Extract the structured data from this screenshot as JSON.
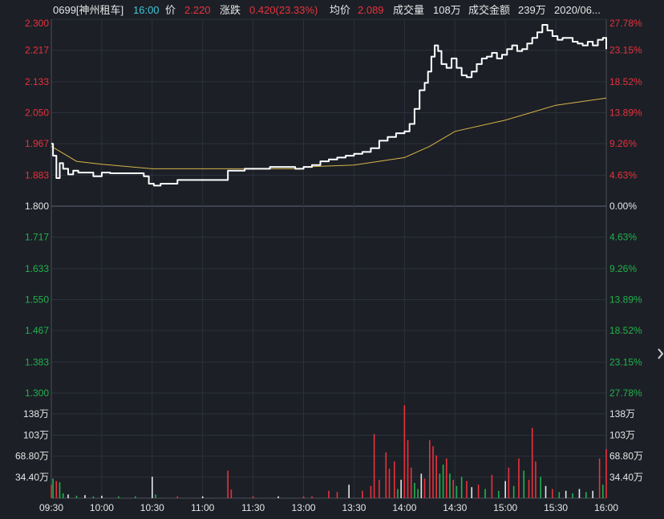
{
  "header": {
    "code_name": "0699[神州租车]",
    "time": "16:00",
    "price_label": "价",
    "price": "2.220",
    "change_label": "涨跌",
    "change": "0.420(23.33%)",
    "avg_label": "均价",
    "avg": "2.089",
    "volume_label": "成交量",
    "volume": "108万",
    "amount_label": "成交金额",
    "amount": "239万",
    "date": "2020/06..."
  },
  "colors": {
    "background": "#1c1f26",
    "grid": "#2c313c",
    "up": "#e8323c",
    "down": "#21b24b",
    "neutral": "#e6e6e6",
    "price_line": "#ffffff",
    "avg_line": "#d8b44a"
  },
  "chart_data": {
    "type": "line",
    "title": "",
    "xlabel": "",
    "ylabel": "",
    "x_ticks": [
      "09:30",
      "10:00",
      "10:30",
      "11:00",
      "11:30",
      "13:00",
      "13:30",
      "14:00",
      "14:30",
      "15:00",
      "15:30",
      "16:00"
    ],
    "price_ticks": [
      {
        "label": "2.300",
        "value": 2.3,
        "pct": "27.78%",
        "dir": "up"
      },
      {
        "label": "2.217",
        "value": 2.217,
        "pct": "23.15%",
        "dir": "up"
      },
      {
        "label": "2.133",
        "value": 2.133,
        "pct": "18.52%",
        "dir": "up"
      },
      {
        "label": "2.050",
        "value": 2.05,
        "pct": "13.89%",
        "dir": "up"
      },
      {
        "label": "1.967",
        "value": 1.967,
        "pct": "9.26%",
        "dir": "up"
      },
      {
        "label": "1.883",
        "value": 1.883,
        "pct": "4.63%",
        "dir": "up"
      },
      {
        "label": "1.800",
        "value": 1.8,
        "pct": "0.00%",
        "dir": "flat"
      },
      {
        "label": "1.717",
        "value": 1.717,
        "pct": "4.63%",
        "dir": "down"
      },
      {
        "label": "1.633",
        "value": 1.633,
        "pct": "9.26%",
        "dir": "down"
      },
      {
        "label": "1.550",
        "value": 1.55,
        "pct": "13.89%",
        "dir": "down"
      },
      {
        "label": "1.467",
        "value": 1.467,
        "pct": "18.52%",
        "dir": "down"
      },
      {
        "label": "1.383",
        "value": 1.383,
        "pct": "23.15%",
        "dir": "down"
      },
      {
        "label": "1.300",
        "value": 1.3,
        "pct": "27.78%",
        "dir": "down"
      }
    ],
    "ylim": [
      1.3,
      2.3
    ],
    "prev_close": 1.8,
    "volume_ticks": [
      {
        "label": "138万",
        "value": 138
      },
      {
        "label": "103万",
        "value": 103
      },
      {
        "label": "68.80万",
        "value": 68.8
      },
      {
        "label": "34.40万",
        "value": 34.4
      }
    ],
    "volume_unit": "万",
    "volume_ylim": [
      0,
      172
    ],
    "series": [
      {
        "kind": "price",
        "x": [
          "09:30",
          "09:31",
          "09:33",
          "09:35",
          "09:37",
          "09:40",
          "09:43",
          "09:46",
          "09:50",
          "09:55",
          "10:00",
          "10:05",
          "10:15",
          "10:25",
          "10:28",
          "10:31",
          "10:35",
          "10:40",
          "10:45",
          "10:50",
          "10:55",
          "11:00",
          "11:05",
          "11:10",
          "11:15",
          "11:20",
          "11:25",
          "11:30",
          "11:35",
          "11:40",
          "11:45",
          "11:50",
          "11:55",
          "12:00",
          "13:00",
          "13:05",
          "13:10",
          "13:15",
          "13:20",
          "13:25",
          "13:30",
          "13:35",
          "13:40",
          "13:45",
          "13:50",
          "13:55",
          "14:00",
          "14:03",
          "14:06",
          "14:09",
          "14:12",
          "14:14",
          "14:16",
          "14:18",
          "14:20",
          "14:22",
          "14:25",
          "14:28",
          "14:31",
          "14:34",
          "14:37",
          "14:40",
          "14:43",
          "14:46",
          "14:49",
          "14:52",
          "14:55",
          "14:58",
          "15:01",
          "15:04",
          "15:07",
          "15:10",
          "15:13",
          "15:16",
          "15:19",
          "15:22",
          "15:25",
          "15:28",
          "15:31",
          "15:34",
          "15:37",
          "15:40",
          "15:43",
          "15:46",
          "15:49",
          "15:52",
          "15:55",
          "15:58",
          "16:00"
        ],
        "values": [
          1.967,
          1.935,
          1.875,
          1.915,
          1.9,
          1.885,
          1.895,
          1.89,
          1.89,
          1.88,
          1.89,
          1.888,
          1.888,
          1.88,
          1.86,
          1.855,
          1.86,
          1.86,
          1.87,
          1.87,
          1.87,
          1.87,
          1.87,
          1.87,
          1.895,
          1.895,
          1.9,
          1.9,
          1.9,
          1.905,
          1.905,
          1.905,
          1.9,
          1.905,
          1.905,
          1.91,
          1.92,
          1.925,
          1.93,
          1.935,
          1.94,
          1.945,
          1.955,
          1.975,
          1.985,
          1.995,
          2.0,
          2.02,
          2.06,
          2.11,
          2.13,
          2.16,
          2.2,
          2.23,
          2.215,
          2.18,
          2.17,
          2.195,
          2.17,
          2.15,
          2.145,
          2.16,
          2.18,
          2.195,
          2.2,
          2.21,
          2.195,
          2.205,
          2.22,
          2.23,
          2.215,
          2.22,
          2.235,
          2.25,
          2.265,
          2.285,
          2.27,
          2.255,
          2.245,
          2.25,
          2.25,
          2.24,
          2.235,
          2.23,
          2.24,
          2.23,
          2.245,
          2.25,
          2.22
        ]
      },
      {
        "kind": "average",
        "x": [
          "09:30",
          "09:45",
          "10:00",
          "10:30",
          "11:00",
          "11:30",
          "12:00",
          "13:00",
          "13:30",
          "14:00",
          "14:15",
          "14:30",
          "15:00",
          "15:15",
          "15:30",
          "16:00"
        ],
        "values": [
          1.96,
          1.92,
          1.912,
          1.9,
          1.9,
          1.9,
          1.9,
          1.905,
          1.91,
          1.93,
          1.96,
          2.0,
          2.03,
          2.05,
          2.07,
          2.089
        ]
      }
    ],
    "volume": {
      "bars": [
        {
          "t": "09:30",
          "v": 22,
          "dir": "up"
        },
        {
          "t": "09:31",
          "v": 32,
          "dir": "down"
        },
        {
          "t": "09:33",
          "v": 28,
          "dir": "up"
        },
        {
          "t": "09:35",
          "v": 26,
          "dir": "down"
        },
        {
          "t": "09:37",
          "v": 8,
          "dir": "down"
        },
        {
          "t": "09:40",
          "v": 6,
          "dir": "flat"
        },
        {
          "t": "09:45",
          "v": 4,
          "dir": "down"
        },
        {
          "t": "09:50",
          "v": 5,
          "dir": "flat"
        },
        {
          "t": "09:55",
          "v": 3,
          "dir": "down"
        },
        {
          "t": "10:00",
          "v": 4,
          "dir": "flat"
        },
        {
          "t": "10:10",
          "v": 3,
          "dir": "down"
        },
        {
          "t": "10:20",
          "v": 3,
          "dir": "down"
        },
        {
          "t": "10:30",
          "v": 35,
          "dir": "flat"
        },
        {
          "t": "10:32",
          "v": 6,
          "dir": "down"
        },
        {
          "t": "10:45",
          "v": 3,
          "dir": "up"
        },
        {
          "t": "11:00",
          "v": 3,
          "dir": "flat"
        },
        {
          "t": "11:15",
          "v": 45,
          "dir": "up"
        },
        {
          "t": "11:17",
          "v": 14,
          "dir": "up"
        },
        {
          "t": "11:30",
          "v": 3,
          "dir": "up"
        },
        {
          "t": "11:45",
          "v": 3,
          "dir": "flat"
        },
        {
          "t": "12:00",
          "v": 3,
          "dir": "up"
        },
        {
          "t": "13:05",
          "v": 3,
          "dir": "up"
        },
        {
          "t": "13:15",
          "v": 12,
          "dir": "up"
        },
        {
          "t": "13:20",
          "v": 10,
          "dir": "up"
        },
        {
          "t": "13:27",
          "v": 22,
          "dir": "flat"
        },
        {
          "t": "13:35",
          "v": 12,
          "dir": "up"
        },
        {
          "t": "13:40",
          "v": 20,
          "dir": "up"
        },
        {
          "t": "13:42",
          "v": 105,
          "dir": "up"
        },
        {
          "t": "13:45",
          "v": 30,
          "dir": "up"
        },
        {
          "t": "13:49",
          "v": 75,
          "dir": "up"
        },
        {
          "t": "13:51",
          "v": 48,
          "dir": "up"
        },
        {
          "t": "13:54",
          "v": 60,
          "dir": "up"
        },
        {
          "t": "13:56",
          "v": 15,
          "dir": "down"
        },
        {
          "t": "13:58",
          "v": 30,
          "dir": "flat"
        },
        {
          "t": "14:00",
          "v": 152,
          "dir": "up"
        },
        {
          "t": "14:02",
          "v": 95,
          "dir": "up"
        },
        {
          "t": "14:04",
          "v": 50,
          "dir": "up"
        },
        {
          "t": "14:06",
          "v": 25,
          "dir": "down"
        },
        {
          "t": "14:08",
          "v": 15,
          "dir": "down"
        },
        {
          "t": "14:10",
          "v": 40,
          "dir": "flat"
        },
        {
          "t": "14:12",
          "v": 32,
          "dir": "up"
        },
        {
          "t": "14:15",
          "v": 95,
          "dir": "up"
        },
        {
          "t": "14:17",
          "v": 85,
          "dir": "up"
        },
        {
          "t": "14:19",
          "v": 70,
          "dir": "up"
        },
        {
          "t": "14:21",
          "v": 40,
          "dir": "down"
        },
        {
          "t": "14:23",
          "v": 55,
          "dir": "down"
        },
        {
          "t": "14:25",
          "v": 65,
          "dir": "up"
        },
        {
          "t": "14:27",
          "v": 40,
          "dir": "down"
        },
        {
          "t": "14:29",
          "v": 30,
          "dir": "up"
        },
        {
          "t": "14:31",
          "v": 20,
          "dir": "down"
        },
        {
          "t": "14:34",
          "v": 35,
          "dir": "down"
        },
        {
          "t": "14:37",
          "v": 28,
          "dir": "up"
        },
        {
          "t": "14:40",
          "v": 18,
          "dir": "flat"
        },
        {
          "t": "14:44",
          "v": 22,
          "dir": "up"
        },
        {
          "t": "14:48",
          "v": 15,
          "dir": "down"
        },
        {
          "t": "14:52",
          "v": 38,
          "dir": "up"
        },
        {
          "t": "14:56",
          "v": 12,
          "dir": "down"
        },
        {
          "t": "15:00",
          "v": 28,
          "dir": "flat"
        },
        {
          "t": "15:02",
          "v": 50,
          "dir": "up"
        },
        {
          "t": "15:05",
          "v": 20,
          "dir": "down"
        },
        {
          "t": "15:08",
          "v": 65,
          "dir": "up"
        },
        {
          "t": "15:11",
          "v": 45,
          "dir": "down"
        },
        {
          "t": "15:14",
          "v": 30,
          "dir": "up"
        },
        {
          "t": "15:16",
          "v": 115,
          "dir": "up"
        },
        {
          "t": "15:18",
          "v": 60,
          "dir": "up"
        },
        {
          "t": "15:21",
          "v": 35,
          "dir": "down"
        },
        {
          "t": "15:24",
          "v": 20,
          "dir": "flat"
        },
        {
          "t": "15:28",
          "v": 15,
          "dir": "up"
        },
        {
          "t": "15:32",
          "v": 10,
          "dir": "down"
        },
        {
          "t": "15:36",
          "v": 12,
          "dir": "flat"
        },
        {
          "t": "15:40",
          "v": 8,
          "dir": "down"
        },
        {
          "t": "15:44",
          "v": 15,
          "dir": "flat"
        },
        {
          "t": "15:48",
          "v": 10,
          "dir": "down"
        },
        {
          "t": "15:52",
          "v": 12,
          "dir": "flat"
        },
        {
          "t": "15:56",
          "v": 65,
          "dir": "up"
        },
        {
          "t": "15:58",
          "v": 22,
          "dir": "down"
        },
        {
          "t": "16:00",
          "v": 80,
          "dir": "up"
        }
      ]
    }
  }
}
